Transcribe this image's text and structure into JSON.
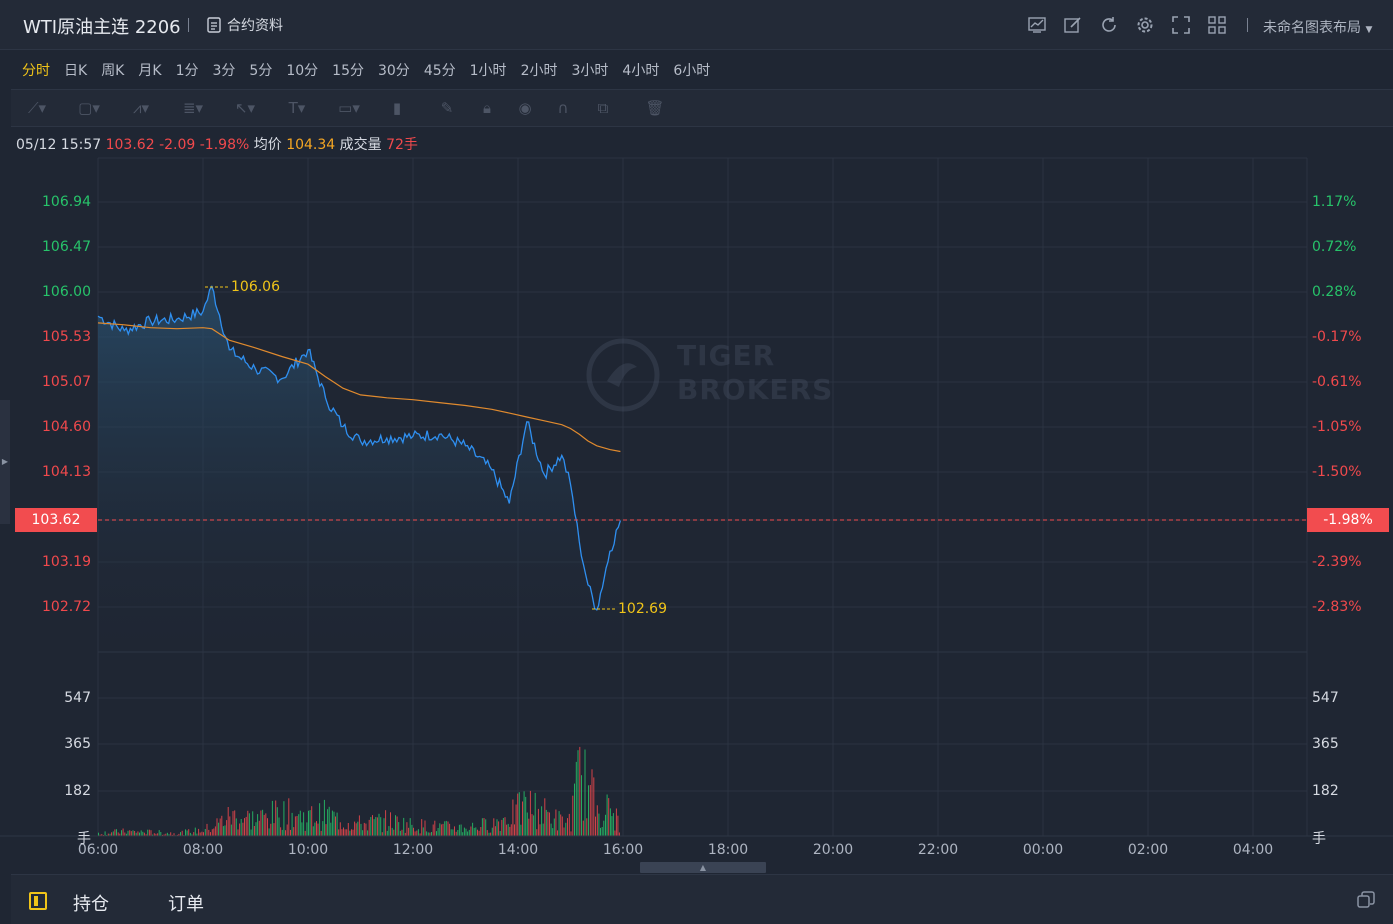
{
  "header": {
    "title": "WTI原油主连 2206",
    "contract_info": "合约资料",
    "layout": "未命名图表布局"
  },
  "periods": [
    "分时",
    "日K",
    "周K",
    "月K",
    "1分",
    "3分",
    "5分",
    "10分",
    "15分",
    "30分",
    "45分",
    "1小时",
    "2小时",
    "3小时",
    "4小时",
    "6小时"
  ],
  "info": {
    "datetime": "05/12 15:57",
    "price": "103.62",
    "change": "-2.09",
    "change_pct": "-1.98%",
    "avg_label": "均价",
    "avg": "104.34",
    "vol_label": "成交量",
    "vol": "72手"
  },
  "price_axis": {
    "left": [
      "106.94",
      "106.47",
      "106.00",
      "105.53",
      "105.07",
      "104.60",
      "104.13",
      "103.19",
      "102.72"
    ],
    "right": [
      "1.17%",
      "0.72%",
      "0.28%",
      "-0.17%",
      "-0.61%",
      "-1.05%",
      "-1.50%",
      "-2.39%",
      "-2.83%"
    ]
  },
  "current": {
    "price": "103.62",
    "pct": "-1.98%"
  },
  "high_label": "106.06",
  "low_label": "102.69",
  "volume_axis": [
    "547",
    "365",
    "182",
    "手"
  ],
  "volume_axis_right": [
    "547",
    "365",
    "182",
    "手"
  ],
  "time_axis": [
    "06:00",
    "08:00",
    "10:00",
    "12:00",
    "14:00",
    "16:00",
    "18:00",
    "20:00",
    "22:00",
    "00:00",
    "02:00",
    "04:00"
  ],
  "watermark": {
    "line1": "TIGER",
    "line2": "BROKERS"
  },
  "bottom": {
    "positions": "持仓",
    "orders": "订单"
  },
  "colors": {
    "up": "#27c36a",
    "down": "#f0494c",
    "price_line": "#2f8ff0",
    "avg_line": "#e08a2e",
    "accent": "#f0c419"
  },
  "chart_data": {
    "type": "line",
    "x": [
      "06:00",
      "06:30",
      "07:00",
      "07:30",
      "08:00",
      "08:10",
      "08:30",
      "09:00",
      "09:30",
      "10:00",
      "10:20",
      "10:40",
      "11:00",
      "11:30",
      "12:00",
      "12:30",
      "13:00",
      "13:30",
      "13:50",
      "14:10",
      "14:30",
      "14:50",
      "15:00",
      "15:10",
      "15:20",
      "15:30",
      "15:45",
      "15:57"
    ],
    "series": [
      {
        "values": [
          105.75,
          105.6,
          105.7,
          105.72,
          105.8,
          106.06,
          105.4,
          105.2,
          105.1,
          105.4,
          104.9,
          104.6,
          104.45,
          104.48,
          104.5,
          104.52,
          104.4,
          104.15,
          103.8,
          104.65,
          104.1,
          104.3,
          104.0,
          103.4,
          102.95,
          102.69,
          103.3,
          103.62
        ]
      },
      {
        "values": [
          105.68,
          105.66,
          105.63,
          105.62,
          105.63,
          105.62,
          105.5,
          105.42,
          105.33,
          105.25,
          105.12,
          105.0,
          104.93,
          104.9,
          104.88,
          104.85,
          104.82,
          104.78,
          104.74,
          104.7,
          104.66,
          104.62,
          104.58,
          104.52,
          104.45,
          104.4,
          104.36,
          104.34
        ]
      }
    ],
    "ylim": [
      102.5,
      107.2
    ],
    "volume": [
      20,
      30,
      25,
      18,
      40,
      60,
      130,
      110,
      150,
      120,
      140,
      90,
      80,
      100,
      70,
      60,
      55,
      80,
      130,
      200,
      150,
      90,
      110,
      420,
      300,
      200,
      160,
      72
    ]
  }
}
